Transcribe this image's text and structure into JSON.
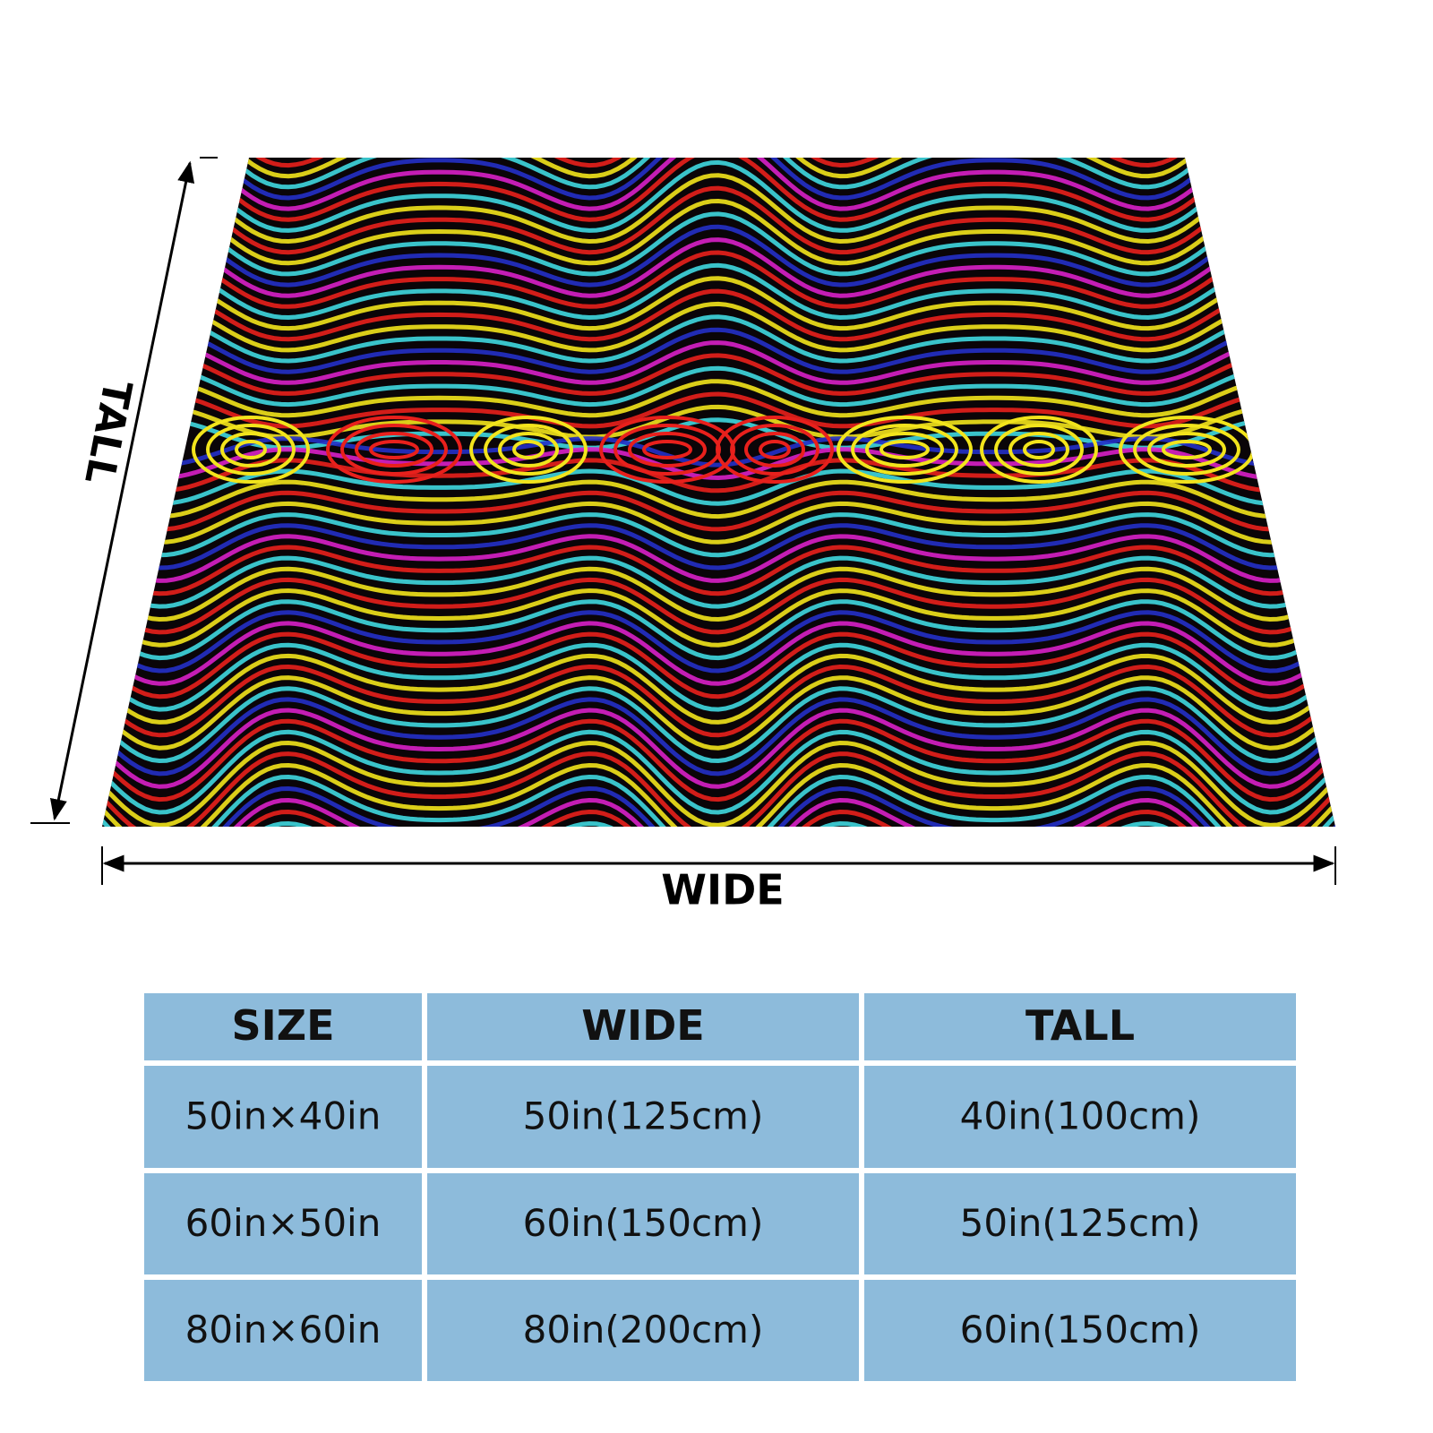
{
  "figure": {
    "tall_label": "TALL",
    "wide_label": "WIDE"
  },
  "table": {
    "header": [
      "SIZE",
      "WIDE",
      "TALL"
    ],
    "rows": [
      [
        "50in×40in",
        "50in(125cm)",
        "40in(100cm)"
      ],
      [
        "60in×50in",
        "60in(150cm)",
        "50in(125cm)"
      ],
      [
        "80in×60in",
        "80in(200cm)",
        "60in(150cm)"
      ]
    ]
  }
}
